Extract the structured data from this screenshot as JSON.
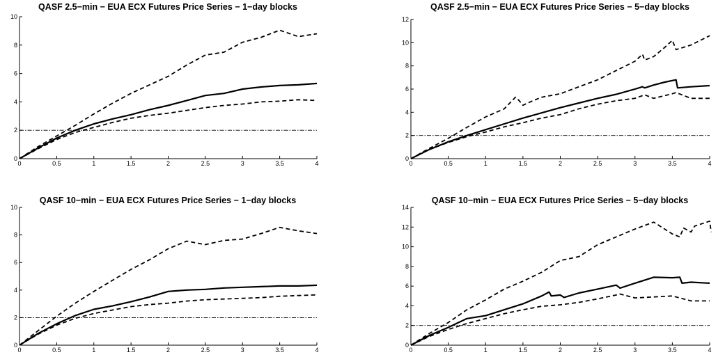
{
  "chart_data": [
    {
      "type": "line",
      "title": "QASF 2.5−min − EUA ECX Futures Price Series − 1−day blocks",
      "xlim": [
        0,
        4
      ],
      "ylim": [
        0,
        10
      ],
      "xticks": [
        "0",
        "0.5",
        "1",
        "1.5",
        "2",
        "2.5",
        "3",
        "3.5",
        "4"
      ],
      "yticks": [
        "0",
        "2",
        "4",
        "6",
        "8",
        "10"
      ],
      "reference_line": 2,
      "series": [
        {
          "style": "solid",
          "x": [
            0,
            0.25,
            0.5,
            0.75,
            1,
            1.25,
            1.5,
            1.75,
            2,
            2.25,
            2.5,
            2.75,
            3,
            3.25,
            3.5,
            3.75,
            4
          ],
          "y": [
            0,
            0.75,
            1.45,
            2.0,
            2.45,
            2.8,
            3.1,
            3.45,
            3.75,
            4.1,
            4.45,
            4.6,
            4.9,
            5.05,
            5.15,
            5.2,
            5.3
          ]
        },
        {
          "style": "dashed",
          "x": [
            0,
            0.25,
            0.5,
            0.75,
            1,
            1.25,
            1.5,
            1.75,
            2,
            2.25,
            2.5,
            2.75,
            3,
            3.25,
            3.5,
            3.75,
            4
          ],
          "y": [
            0,
            0.85,
            1.6,
            2.35,
            3.15,
            3.9,
            4.6,
            5.2,
            5.8,
            6.6,
            7.3,
            7.5,
            8.2,
            8.55,
            9.05,
            8.6,
            8.8
          ]
        },
        {
          "style": "dashed",
          "x": [
            0,
            0.25,
            0.5,
            0.75,
            1,
            1.25,
            1.5,
            1.75,
            2,
            2.25,
            2.5,
            2.75,
            3,
            3.25,
            3.5,
            3.75,
            4
          ],
          "y": [
            0,
            0.7,
            1.35,
            1.85,
            2.2,
            2.55,
            2.85,
            3.05,
            3.2,
            3.4,
            3.6,
            3.75,
            3.85,
            4.0,
            4.05,
            4.15,
            4.1
          ]
        }
      ]
    },
    {
      "type": "line",
      "title": "QASF 2.5−min − EUA ECX Futures Price Series − 5−day blocks",
      "xlim": [
        0,
        4
      ],
      "ylim": [
        0,
        12
      ],
      "xticks": [
        "0",
        "0.5",
        "1",
        "1.5",
        "2",
        "2.5",
        "3",
        "3.5",
        "4"
      ],
      "yticks": [
        "0",
        "2",
        "4",
        "6",
        "8",
        "10",
        "12"
      ],
      "reference_line": 2,
      "series": [
        {
          "style": "solid",
          "x": [
            0,
            0.25,
            0.5,
            0.75,
            1,
            1.25,
            1.5,
            1.75,
            2,
            2.25,
            2.5,
            2.75,
            3,
            3.1,
            3.13,
            3.25,
            3.4,
            3.55,
            3.57,
            3.75,
            4
          ],
          "y": [
            0,
            0.8,
            1.45,
            2.0,
            2.5,
            3.0,
            3.5,
            3.95,
            4.4,
            4.8,
            5.2,
            5.55,
            6.0,
            6.2,
            6.1,
            6.35,
            6.6,
            6.8,
            6.1,
            6.2,
            6.3
          ]
        },
        {
          "style": "dashed",
          "x": [
            0,
            0.25,
            0.5,
            0.75,
            1,
            1.25,
            1.4,
            1.45,
            1.5,
            1.6,
            1.75,
            2,
            2.25,
            2.5,
            2.75,
            3,
            3.1,
            3.13,
            3.25,
            3.4,
            3.5,
            3.55,
            3.75,
            4
          ],
          "y": [
            0,
            0.9,
            1.75,
            2.7,
            3.6,
            4.3,
            5.3,
            5.0,
            4.6,
            4.9,
            5.3,
            5.6,
            6.2,
            6.8,
            7.6,
            8.4,
            9.0,
            8.5,
            8.8,
            9.6,
            10.2,
            9.4,
            9.8,
            10.6
          ]
        },
        {
          "style": "dashed",
          "x": [
            0,
            0.25,
            0.5,
            0.75,
            1,
            1.25,
            1.5,
            1.75,
            2,
            2.25,
            2.5,
            2.75,
            3,
            3.13,
            3.25,
            3.5,
            3.55,
            3.75,
            4
          ],
          "y": [
            0,
            0.8,
            1.4,
            1.9,
            2.3,
            2.75,
            3.1,
            3.5,
            3.8,
            4.3,
            4.7,
            5.0,
            5.2,
            5.5,
            5.2,
            5.6,
            5.7,
            5.2,
            5.2
          ]
        }
      ]
    },
    {
      "type": "line",
      "title": "QASF 10−min − EUA ECX Futures Price Series − 1−day blocks",
      "xlim": [
        0,
        4
      ],
      "ylim": [
        0,
        10
      ],
      "xticks": [
        "0",
        "0.5",
        "1",
        "1.5",
        "2",
        "2.5",
        "3",
        "3.5",
        "4"
      ],
      "yticks": [
        "0",
        "2",
        "4",
        "6",
        "8",
        "10"
      ],
      "reference_line": 2,
      "series": [
        {
          "style": "solid",
          "x": [
            0,
            0.25,
            0.5,
            0.75,
            1,
            1.25,
            1.5,
            1.75,
            2,
            2.25,
            2.5,
            2.75,
            3,
            3.25,
            3.5,
            3.75,
            4
          ],
          "y": [
            0,
            0.85,
            1.55,
            2.15,
            2.6,
            2.85,
            3.15,
            3.5,
            3.9,
            4.0,
            4.05,
            4.15,
            4.2,
            4.25,
            4.3,
            4.3,
            4.35
          ]
        },
        {
          "style": "dashed",
          "x": [
            0,
            0.25,
            0.5,
            0.75,
            1,
            1.25,
            1.5,
            1.75,
            2,
            2.25,
            2.5,
            2.75,
            3,
            3.25,
            3.5,
            3.75,
            4
          ],
          "y": [
            0,
            1.05,
            2.1,
            3.05,
            3.9,
            4.7,
            5.5,
            6.2,
            7.0,
            7.55,
            7.3,
            7.6,
            7.7,
            8.1,
            8.55,
            8.3,
            8.1
          ]
        },
        {
          "style": "dashed",
          "x": [
            0,
            0.25,
            0.5,
            0.75,
            1,
            1.25,
            1.5,
            1.75,
            2,
            2.25,
            2.5,
            2.75,
            3,
            3.25,
            3.5,
            3.75,
            4
          ],
          "y": [
            0,
            0.8,
            1.45,
            1.95,
            2.3,
            2.55,
            2.8,
            2.95,
            3.05,
            3.2,
            3.3,
            3.35,
            3.4,
            3.45,
            3.55,
            3.6,
            3.65
          ]
        }
      ]
    },
    {
      "type": "line",
      "title": "QASF 10−min − EUA ECX Futures Price Series − 5−day blocks",
      "xlim": [
        0,
        4
      ],
      "ylim": [
        0,
        14
      ],
      "xticks": [
        "0",
        "0.5",
        "1",
        "1.5",
        "2",
        "2.5",
        "3",
        "3.5",
        "4"
      ],
      "yticks": [
        "0",
        "2",
        "4",
        "6",
        "8",
        "10",
        "12",
        "14"
      ],
      "reference_line": 2,
      "series": [
        {
          "style": "solid",
          "x": [
            0,
            0.25,
            0.5,
            0.75,
            1,
            1.25,
            1.5,
            1.75,
            1.85,
            1.88,
            2,
            2.05,
            2.25,
            2.5,
            2.75,
            2.8,
            3,
            3.25,
            3.5,
            3.6,
            3.63,
            3.75,
            4
          ],
          "y": [
            0,
            1.0,
            1.8,
            2.7,
            3.0,
            3.6,
            4.2,
            5.0,
            5.4,
            5.0,
            5.1,
            4.85,
            5.3,
            5.7,
            6.1,
            5.8,
            6.3,
            6.9,
            6.85,
            6.9,
            6.3,
            6.4,
            6.3
          ]
        },
        {
          "style": "dashed",
          "x": [
            0,
            0.25,
            0.5,
            0.75,
            1,
            1.25,
            1.5,
            1.75,
            2,
            2.25,
            2.5,
            2.75,
            3,
            3.25,
            3.5,
            3.6,
            3.65,
            3.75,
            3.8,
            4,
            4.02
          ],
          "y": [
            0,
            1.2,
            2.3,
            3.6,
            4.6,
            5.7,
            6.5,
            7.4,
            8.6,
            9.0,
            10.2,
            11.0,
            11.8,
            12.5,
            11.3,
            11.0,
            11.9,
            11.5,
            12.1,
            12.6,
            11.5
          ]
        },
        {
          "style": "dashed",
          "x": [
            0,
            0.25,
            0.5,
            0.75,
            1,
            1.25,
            1.5,
            1.75,
            2,
            2.25,
            2.5,
            2.75,
            2.8,
            3,
            3.25,
            3.5,
            3.75,
            4
          ],
          "y": [
            0,
            0.9,
            1.6,
            2.2,
            2.7,
            3.2,
            3.6,
            3.95,
            4.1,
            4.35,
            4.7,
            5.1,
            5.2,
            4.8,
            4.9,
            5.0,
            4.5,
            4.5
          ]
        }
      ]
    }
  ]
}
